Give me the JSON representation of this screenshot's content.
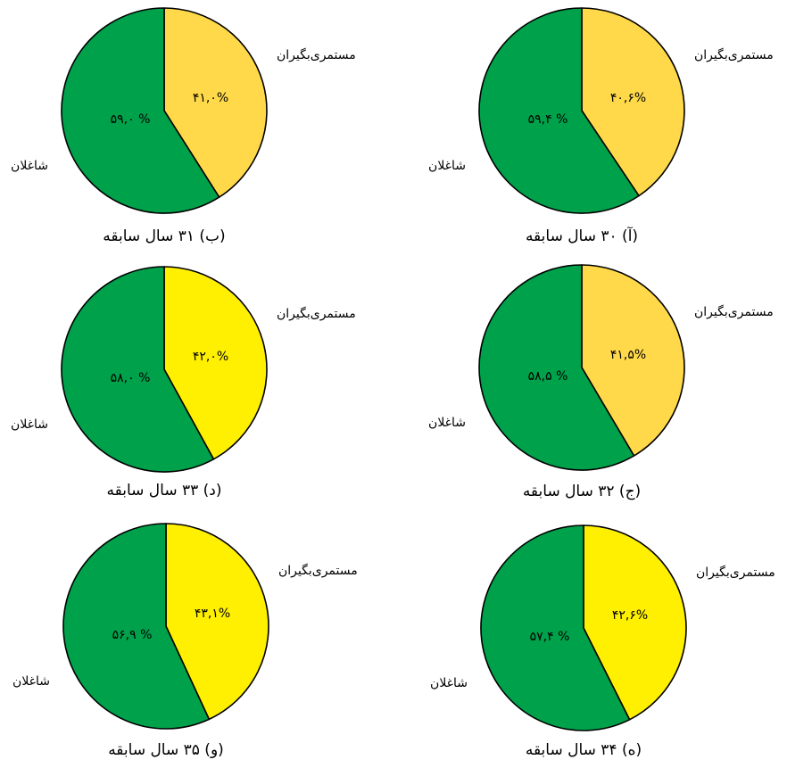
{
  "chart_data": [
    {
      "type": "pie",
      "caption": "(آ) ۳۰ سال سابقه",
      "slices": [
        {
          "name": "مستمری‌بگیران",
          "value": 40.6,
          "label": "۴۰,۶%",
          "color": "#ffd94a"
        },
        {
          "name": "شاغلان",
          "value": 59.4,
          "label": "۵۹,۴ %",
          "color": "#00a14b"
        }
      ]
    },
    {
      "type": "pie",
      "caption": "(ب) ۳۱ سال سابقه",
      "slices": [
        {
          "name": "مستمری‌بگیران",
          "value": 41.0,
          "label": "۴۱,۰%",
          "color": "#ffd94a"
        },
        {
          "name": "شاغلان",
          "value": 59.0,
          "label": "۵۹,۰ %",
          "color": "#00a14b"
        }
      ]
    },
    {
      "type": "pie",
      "caption": "(ج) ۳۲ سال سابقه",
      "slices": [
        {
          "name": "مستمری‌بگیران",
          "value": 41.5,
          "label": "۴۱,۵%",
          "color": "#ffd94a"
        },
        {
          "name": "شاغلان",
          "value": 58.5,
          "label": "۵۸,۵ %",
          "color": "#00a14b"
        }
      ]
    },
    {
      "type": "pie",
      "caption": "(د) ۳۳ سال سابقه",
      "slices": [
        {
          "name": "مستمری‌بگیران",
          "value": 42.0,
          "label": "۴۲,۰%",
          "color": "#ffef00"
        },
        {
          "name": "شاغلان",
          "value": 58.0,
          "label": "۵۸,۰ %",
          "color": "#00a14b"
        }
      ]
    },
    {
      "type": "pie",
      "caption": "(ه) ۳۴ سال سابقه",
      "slices": [
        {
          "name": "مستمری‌بگیران",
          "value": 42.6,
          "label": "۴۲,۶%",
          "color": "#ffef00"
        },
        {
          "name": "شاغلان",
          "value": 57.4,
          "label": "۵۷,۴ %",
          "color": "#00a14b"
        }
      ]
    },
    {
      "type": "pie",
      "caption": "(و) ۳۵ سال سابقه",
      "slices": [
        {
          "name": "مستمری‌بگیران",
          "value": 43.1,
          "label": "۴۳,۱%",
          "color": "#ffef00"
        },
        {
          "name": "شاغلان",
          "value": 56.9,
          "label": "۵۶,۹ %",
          "color": "#00a14b"
        }
      ]
    }
  ]
}
